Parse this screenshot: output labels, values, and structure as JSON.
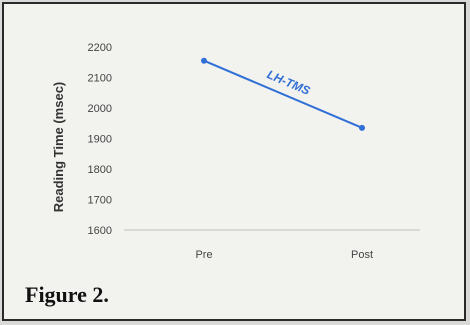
{
  "caption": "Figure 2.",
  "chart_data": {
    "type": "line",
    "categories": [
      "Pre",
      "Post"
    ],
    "series": [
      {
        "name": "LH-TMS",
        "values": [
          2155,
          1935
        ],
        "color": "#2f6fd6"
      }
    ],
    "ylabel": "Reading Time (msec)",
    "xlabel": "",
    "ylim": [
      1600,
      2200
    ],
    "yticks": [
      2200,
      2100,
      2000,
      1900,
      1800,
      1700,
      1600
    ],
    "grid": false,
    "legend": "inline-label"
  }
}
